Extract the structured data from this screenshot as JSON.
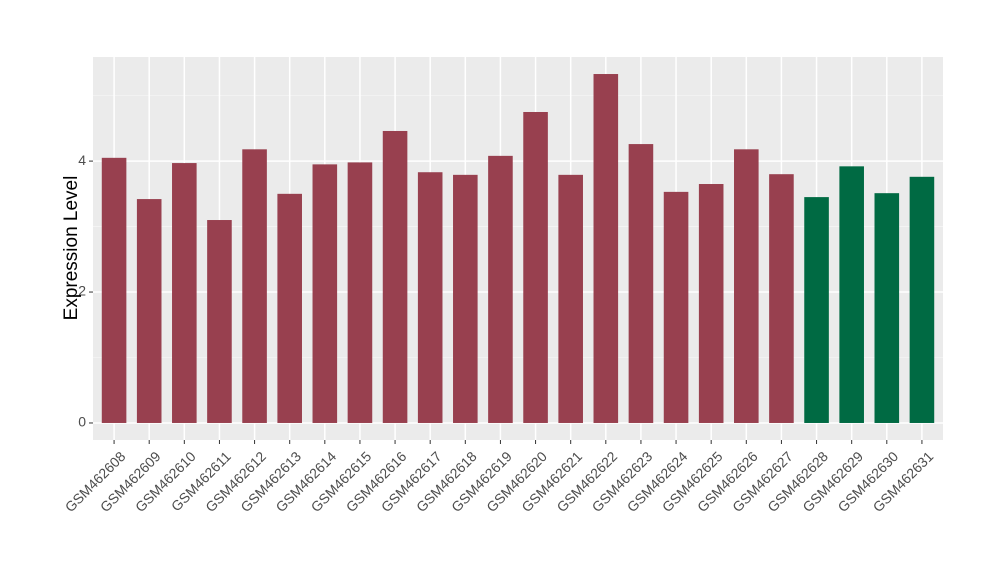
{
  "chart_data": {
    "type": "bar",
    "y_label": "Expression Level",
    "categories": [
      "GSM462608",
      "GSM462609",
      "GSM462610",
      "GSM462611",
      "GSM462612",
      "GSM462613",
      "GSM462614",
      "GSM462615",
      "GSM462616",
      "GSM462617",
      "GSM462618",
      "GSM462619",
      "GSM462620",
      "GSM462621",
      "GSM462622",
      "GSM462623",
      "GSM462624",
      "GSM462625",
      "GSM462626",
      "GSM462627",
      "GSM462628",
      "GSM462629",
      "GSM462630",
      "GSM462631"
    ],
    "values": [
      4.05,
      3.42,
      3.97,
      3.1,
      4.18,
      3.5,
      3.95,
      3.98,
      4.46,
      3.83,
      3.79,
      4.08,
      4.75,
      3.79,
      5.33,
      4.26,
      3.53,
      3.65,
      4.18,
      3.8,
      3.45,
      3.92,
      3.51,
      3.76
    ],
    "colors": [
      "#98404f",
      "#98404f",
      "#98404f",
      "#98404f",
      "#98404f",
      "#98404f",
      "#98404f",
      "#98404f",
      "#98404f",
      "#98404f",
      "#98404f",
      "#98404f",
      "#98404f",
      "#98404f",
      "#98404f",
      "#98404f",
      "#98404f",
      "#98404f",
      "#98404f",
      "#98404f",
      "#006a43",
      "#006a43",
      "#006a43",
      "#006a43"
    ],
    "ylim": [
      -0.26,
      5.59
    ],
    "yticks": [
      0,
      2,
      4
    ],
    "grid": true
  }
}
